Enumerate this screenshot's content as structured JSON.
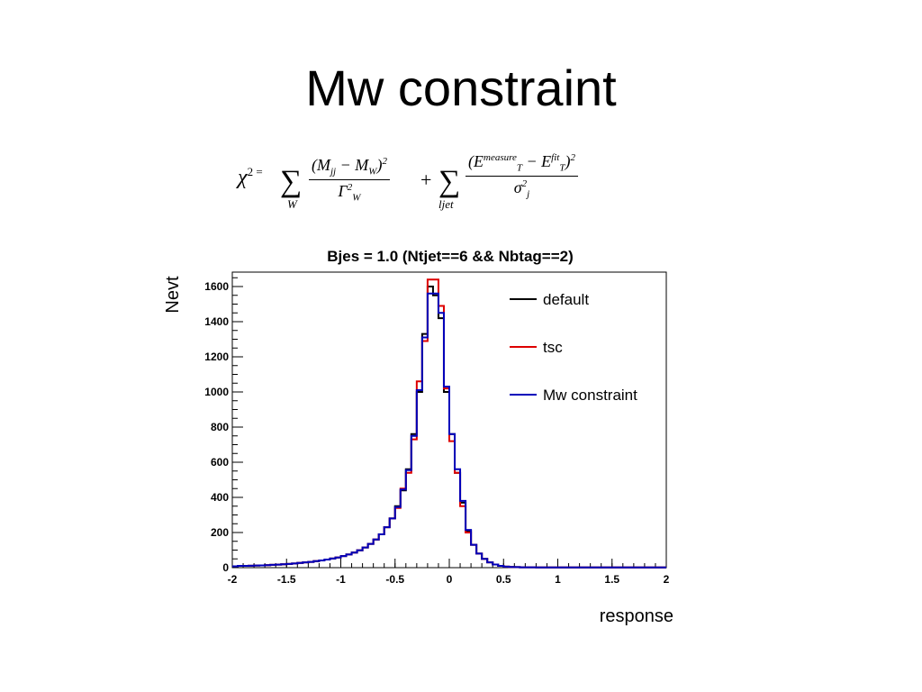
{
  "slide": {
    "title": "Mw constraint"
  },
  "formula": {
    "lhs": "χ",
    "lhs_sup": "2 =",
    "sum1_sub": "W",
    "frac1_num": "(M",
    "frac1_num_sub1": "jj",
    "frac1_num_mid": " − M",
    "frac1_num_sub2": "W",
    "frac1_num_end": ")",
    "frac1_num_sup": "2",
    "frac1_den": "Γ",
    "frac1_den_sup": "2",
    "frac1_den_sub": "W",
    "plus": "+",
    "sum2_sub": "ljet",
    "frac2_num_a": "(E",
    "frac2_num_a_sup": "measure",
    "frac2_num_a_sub": "T",
    "frac2_num_mid": " − E",
    "frac2_num_b_sup": "fit",
    "frac2_num_b_sub": "T",
    "frac2_num_end": ")",
    "frac2_num_sup": "2",
    "frac2_den": "σ",
    "frac2_den_sup": "2",
    "frac2_den_sub": "j"
  },
  "chart_data": {
    "type": "line",
    "title": "Bjes = 1.0 (Ntjet==6 && Nbtag==2)",
    "xlabel": "response",
    "ylabel": "Nevt",
    "xlim": [
      -2,
      2
    ],
    "ylim": [
      0,
      1700
    ],
    "x_ticks": [
      "-2",
      "-1.5",
      "-1",
      "-0.5",
      "0",
      "0.5",
      "1",
      "1.5",
      "2"
    ],
    "y_ticks": [
      "0",
      "200",
      "400",
      "600",
      "800",
      "1000",
      "1200",
      "1400",
      "1600"
    ],
    "grid": false,
    "legend_position": "top-right",
    "bin_edges": [
      -2.0,
      -1.95,
      -1.9,
      -1.85,
      -1.8,
      -1.75,
      -1.7,
      -1.65,
      -1.6,
      -1.55,
      -1.5,
      -1.45,
      -1.4,
      -1.35,
      -1.3,
      -1.25,
      -1.2,
      -1.15,
      -1.1,
      -1.05,
      -1.0,
      -0.95,
      -0.9,
      -0.85,
      -0.8,
      -0.75,
      -0.7,
      -0.65,
      -0.6,
      -0.55,
      -0.5,
      -0.45,
      -0.4,
      -0.35,
      -0.3,
      -0.25,
      -0.2,
      -0.15,
      -0.1,
      -0.05,
      0.0,
      0.05,
      0.1,
      0.15,
      0.2,
      0.25,
      0.3,
      0.35,
      0.4,
      0.45,
      0.5,
      0.55,
      0.6,
      0.65,
      0.7,
      0.75,
      0.8,
      0.85,
      0.9,
      0.95,
      1.0,
      1.05,
      1.1,
      1.15,
      1.2,
      1.25,
      1.3,
      1.35,
      1.4,
      1.45,
      1.5,
      1.55,
      1.6,
      1.65,
      1.7,
      1.75,
      1.8,
      1.85,
      1.9,
      1.95,
      2.0
    ],
    "series": [
      {
        "name": "default",
        "color": "#000000",
        "values": [
          8,
          10,
          10,
          11,
          12,
          13,
          14,
          16,
          17,
          19,
          21,
          24,
          27,
          30,
          33,
          37,
          41,
          46,
          52,
          58,
          66,
          75,
          86,
          99,
          115,
          135,
          160,
          190,
          230,
          280,
          350,
          440,
          560,
          760,
          1000,
          1330,
          1600,
          1550,
          1420,
          1000,
          760,
          540,
          370,
          210,
          130,
          80,
          50,
          30,
          18,
          10,
          6,
          4,
          3,
          2,
          2,
          2,
          1,
          1,
          1,
          1,
          1,
          1,
          1,
          1,
          1,
          1,
          1,
          1,
          1,
          1,
          1,
          1,
          1,
          1,
          1,
          1,
          1,
          1,
          1,
          1
        ]
      },
      {
        "name": "tsc",
        "color": "#dd0000",
        "values": [
          8,
          10,
          10,
          11,
          12,
          13,
          14,
          16,
          17,
          19,
          21,
          24,
          27,
          30,
          33,
          37,
          41,
          46,
          52,
          58,
          66,
          75,
          86,
          99,
          115,
          135,
          160,
          190,
          230,
          280,
          340,
          450,
          540,
          730,
          1060,
          1290,
          1640,
          1640,
          1490,
          1020,
          720,
          540,
          350,
          200,
          130,
          80,
          50,
          30,
          18,
          10,
          6,
          4,
          3,
          2,
          2,
          2,
          1,
          1,
          1,
          1,
          1,
          1,
          1,
          1,
          1,
          1,
          1,
          1,
          1,
          1,
          1,
          1,
          1,
          1,
          1,
          1,
          1,
          1,
          1,
          1
        ]
      },
      {
        "name": "Mw constraint",
        "color": "#0000bb",
        "values": [
          8,
          10,
          10,
          11,
          12,
          13,
          14,
          16,
          17,
          19,
          21,
          24,
          27,
          30,
          33,
          37,
          41,
          46,
          52,
          58,
          66,
          75,
          86,
          99,
          115,
          135,
          160,
          190,
          230,
          280,
          345,
          445,
          555,
          750,
          1010,
          1310,
          1560,
          1560,
          1450,
          1030,
          760,
          560,
          380,
          215,
          130,
          80,
          50,
          30,
          18,
          10,
          6,
          4,
          3,
          2,
          2,
          2,
          1,
          1,
          1,
          1,
          1,
          1,
          1,
          1,
          1,
          1,
          1,
          1,
          1,
          1,
          1,
          1,
          1,
          1,
          1,
          1,
          1,
          1,
          1,
          1
        ]
      }
    ]
  }
}
